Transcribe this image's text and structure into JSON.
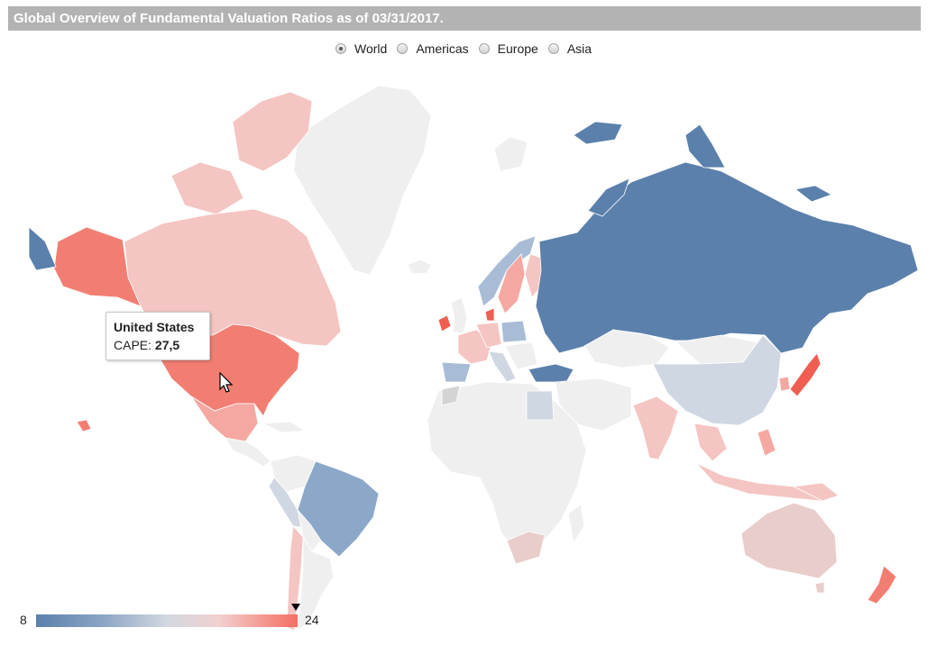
{
  "title": "Global Overview of Fundamental Valuation Ratios as of 03/31/2017.",
  "region_options": [
    {
      "label": "World",
      "selected": true
    },
    {
      "label": "Americas",
      "selected": false
    },
    {
      "label": "Europe",
      "selected": false
    },
    {
      "label": "Asia",
      "selected": false
    }
  ],
  "tooltip": {
    "country": "United States",
    "metric_label": "CAPE:",
    "metric_value": "27,5"
  },
  "legend": {
    "min": "8",
    "max": "24",
    "marker_value": 24,
    "colors": {
      "low": "#5b80ab",
      "mid": "#d9dde3",
      "high": "#f36f61"
    }
  },
  "colors": {
    "no_data": "#efefef",
    "strong_blue": "#5b80ab",
    "medium_blue": "#8ca8c9",
    "light_blue": "#a8bcd6",
    "pale_blue": "#cfd7e2",
    "light_pink": "#f4c5c2",
    "pink": "#f5a8a2",
    "salmon": "#f27e73",
    "red": "#ef5e51",
    "dusty_pink": "#e8cdcb"
  },
  "cursor_icon": "mouse-pointer-icon"
}
